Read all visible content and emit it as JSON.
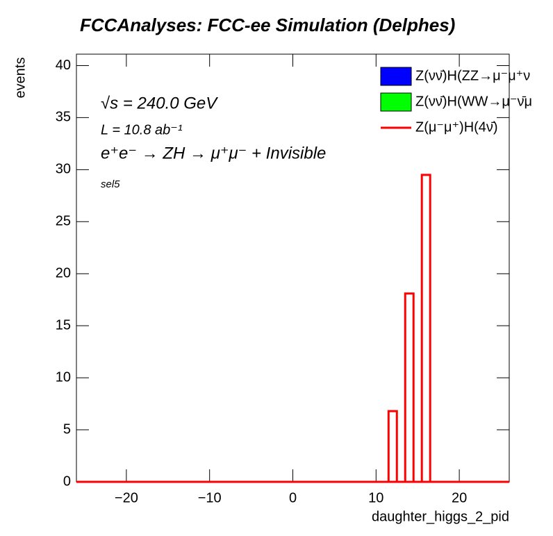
{
  "chart_data": {
    "type": "histogram",
    "title": "FCCAnalyses: FCC-ee Simulation (Delphes)",
    "annotations": [
      "√s = 240.0 GeV",
      "L = 10.8 ab⁻¹",
      "e⁺e⁻ → ZH → μ⁺μ⁻ + Invisible",
      "sel5"
    ],
    "xlabel": "daughter_higgs_2_pid",
    "ylabel": "events",
    "bins": [
      11.5,
      12.5,
      13.5,
      14.5,
      15.5,
      16.5
    ],
    "series": [
      {
        "name": "Z(νν̄)H(ZZ→μ⁻μ⁺ν",
        "color": "#0000ff",
        "style": "fill"
      },
      {
        "name": "Z(νν̄)H(WW→μ⁻ν̄μ",
        "color": "#00ff00",
        "style": "fill"
      },
      {
        "name": "Z(μ⁻μ⁺)H(4ν̄)",
        "color": "#ff0000",
        "style": "line",
        "values": [
          6.8,
          0,
          18.1,
          0,
          29.5
        ]
      }
    ],
    "xlim": [
      -26,
      26
    ],
    "ylim": [
      0,
      41.1
    ],
    "xticks": [
      {
        "value": -20,
        "label": "−20"
      },
      {
        "value": -10,
        "label": "−10"
      },
      0,
      10,
      20
    ],
    "yticks": [
      0,
      5,
      10,
      15,
      20,
      25,
      30,
      35,
      40
    ]
  }
}
